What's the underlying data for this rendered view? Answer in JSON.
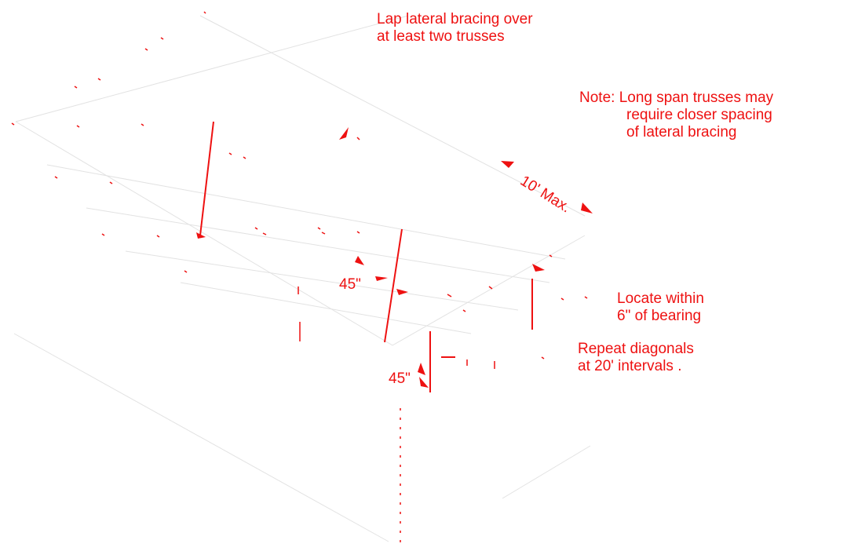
{
  "labels": {
    "lap_bracing": [
      "Lap lateral bracing over",
      "at least two trusses"
    ],
    "note": [
      "Note:  Long span trusses may",
      "require  closer spacing",
      "of lateral bracing"
    ],
    "max_spacing": "10' Max.",
    "angle_upper": "45\"",
    "angle_lower": "45\"",
    "locate": [
      "Locate within",
      "6\" of bearing"
    ],
    "repeat": [
      "Repeat diagonals",
      "at 20' intervals ."
    ]
  },
  "colors": {
    "annotation": "#ee1111",
    "structure": "#dcdcdc"
  }
}
